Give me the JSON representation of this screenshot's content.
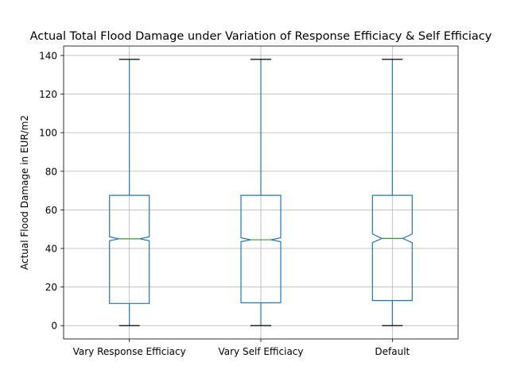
{
  "chart_data": {
    "type": "boxplot",
    "title": "Actual Total Flood Damage under Variation of Response Efficiacy & Self Efficiacy",
    "xlabel": "",
    "ylabel": "Actual Flood Damage in EUR/m2",
    "ylim": [
      -6.9,
      144.9
    ],
    "yticks": [
      0,
      20,
      40,
      60,
      80,
      100,
      120,
      140
    ],
    "grid": true,
    "notched": true,
    "categories": [
      "Vary Response Efficiacy",
      "Vary Self Efficiacy",
      "Default"
    ],
    "boxes": [
      {
        "whisker_low": 0,
        "q1": 11.5,
        "median": 45.0,
        "q3": 67.5,
        "whisker_high": 138.0,
        "notch_low": 44.0,
        "notch_high": 46.0
      },
      {
        "whisker_low": 0,
        "q1": 11.8,
        "median": 44.5,
        "q3": 67.5,
        "whisker_high": 138.0,
        "notch_low": 43.5,
        "notch_high": 45.5
      },
      {
        "whisker_low": 0,
        "q1": 13.0,
        "median": 45.2,
        "q3": 67.5,
        "whisker_high": 138.0,
        "notch_low": 43.0,
        "notch_high": 47.5
      }
    ],
    "colors": {
      "box": "#1f77b4",
      "median": "#2ca02c",
      "whisker_cap": "#000000",
      "grid": "#b0b0b0",
      "axis": "#000000"
    }
  }
}
